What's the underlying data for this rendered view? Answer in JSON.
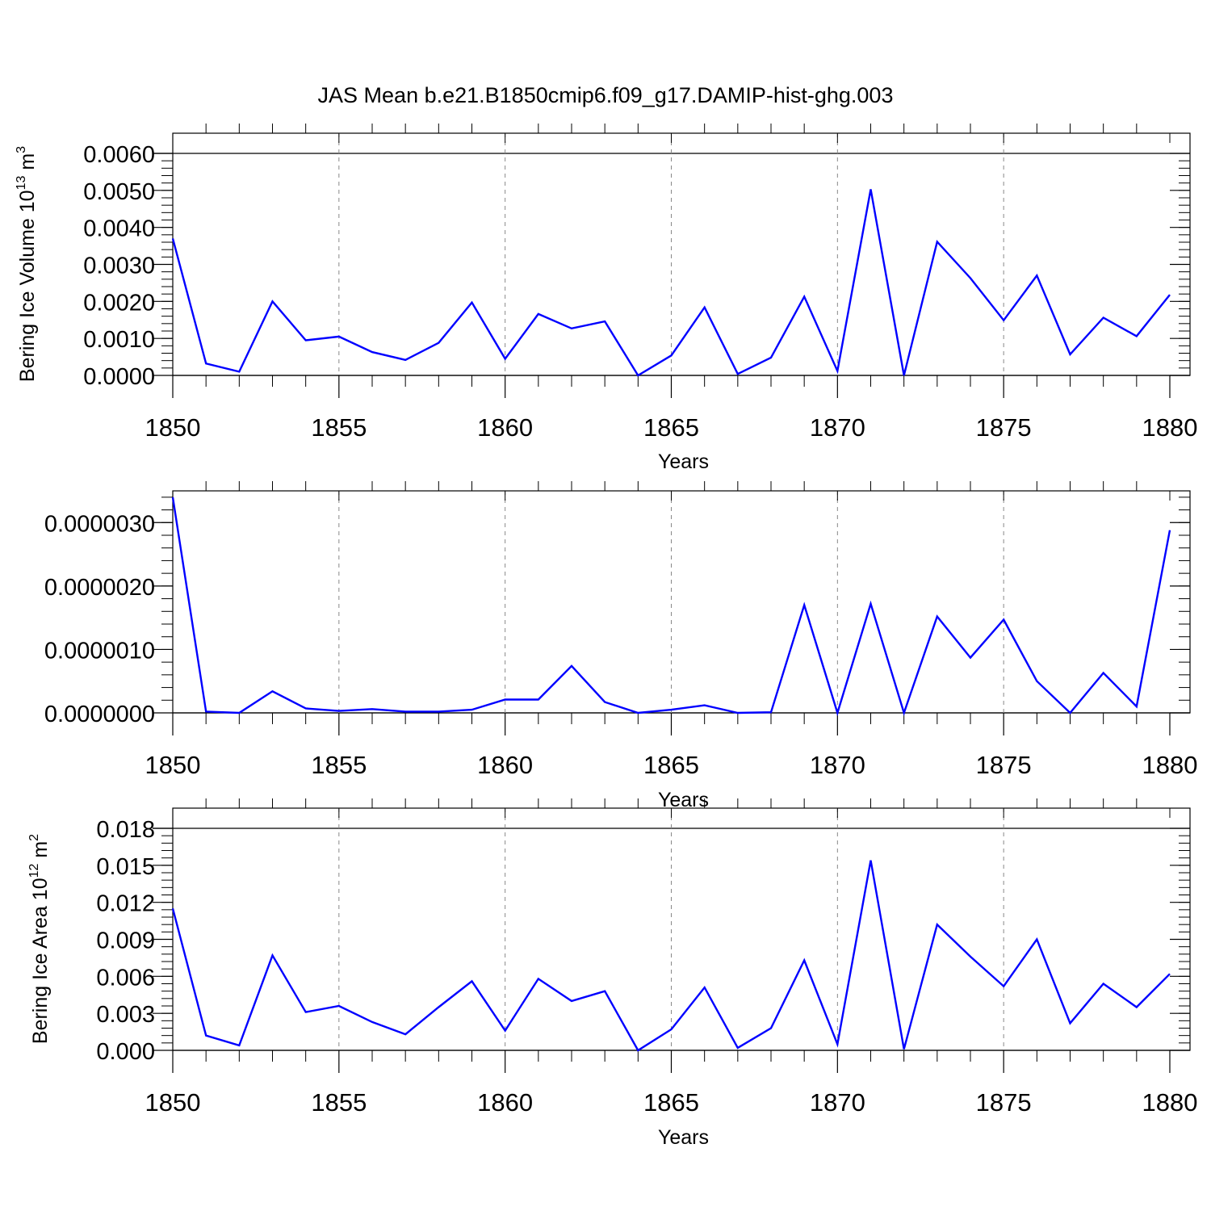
{
  "title": "JAS Mean b.e21.B1850cmip6.f09_g17.DAMIP-hist-ghg.003",
  "chart_data": [
    {
      "type": "line",
      "xlabel": "Years",
      "ylabel": "Bering Ice Volume 10",
      "ylabel_exp": "13",
      "ylabel_unit": " m",
      "ylabel_unit_exp": "3",
      "xlim": [
        1850,
        1880
      ],
      "ylim": [
        0,
        0.006
      ],
      "x_ticks": [
        "1850",
        "1855",
        "1860",
        "1865",
        "1870",
        "1875",
        "1880"
      ],
      "y_ticks": [
        "0.0000",
        "0.0010",
        "0.0020",
        "0.0030",
        "0.0040",
        "0.0050",
        "0.0060"
      ],
      "x": [
        1850,
        1851,
        1852,
        1853,
        1854,
        1855,
        1856,
        1857,
        1858,
        1859,
        1860,
        1861,
        1862,
        1863,
        1864,
        1865,
        1866,
        1867,
        1868,
        1869,
        1870,
        1871,
        1872,
        1873,
        1874,
        1875,
        1876,
        1877,
        1878,
        1879,
        1880
      ],
      "series": [
        {
          "color": "#0000ff",
          "values": [
            0.0037,
            0.00032,
            0.0001,
            0.002,
            0.00095,
            0.00105,
            0.00063,
            0.00042,
            0.00088,
            0.00197,
            0.00045,
            0.00166,
            0.00127,
            0.00146,
            0.0,
            0.00054,
            0.00184,
            4e-05,
            0.00048,
            0.00213,
            0.00012,
            0.00503,
            0.0,
            0.00361,
            0.00263,
            0.00149,
            0.0027,
            0.00057,
            0.00156,
            0.00106,
            0.00218
          ]
        }
      ],
      "grid": "vertical dashed at major x ticks"
    },
    {
      "type": "line",
      "xlabel": "Years",
      "ylabel": "",
      "xlim": [
        1850,
        1880
      ],
      "ylim": [
        0,
        3.5e-06
      ],
      "x_ticks": [
        "1850",
        "1855",
        "1860",
        "1865",
        "1870",
        "1875",
        "1880"
      ],
      "y_ticks": [
        "0.0000000",
        "0.0000010",
        "0.0000020",
        "0.0000030"
      ],
      "x": [
        1850,
        1851,
        1852,
        1853,
        1854,
        1855,
        1856,
        1857,
        1858,
        1859,
        1860,
        1861,
        1862,
        1863,
        1864,
        1865,
        1866,
        1867,
        1868,
        1869,
        1870,
        1871,
        1872,
        1873,
        1874,
        1875,
        1876,
        1877,
        1878,
        1879,
        1880
      ],
      "series": [
        {
          "color": "#0000ff",
          "values": [
            3.4e-06,
            2e-08,
            0.0,
            3.4e-07,
            7e-08,
            3e-08,
            6e-08,
            2e-08,
            2e-08,
            5e-08,
            2.1e-07,
            2.1e-07,
            7.4e-07,
            1.7e-07,
            0.0,
            5e-08,
            1.2e-07,
            0.0,
            1e-08,
            1.7e-06,
            0.0,
            1.72e-06,
            0.0,
            1.52e-06,
            8.7e-07,
            1.47e-06,
            5e-07,
            0.0,
            6.3e-07,
            1e-07,
            2.88e-06
          ]
        }
      ],
      "grid": "vertical dashed at major x ticks"
    },
    {
      "type": "line",
      "xlabel": "Years",
      "ylabel": "Bering Ice Area 10",
      "ylabel_exp": "12",
      "ylabel_unit": " m",
      "ylabel_unit_exp": "2",
      "xlim": [
        1850,
        1880
      ],
      "ylim": [
        0,
        0.018
      ],
      "x_ticks": [
        "1850",
        "1855",
        "1860",
        "1865",
        "1870",
        "1875",
        "1880"
      ],
      "y_ticks": [
        "0.000",
        "0.003",
        "0.006",
        "0.009",
        "0.012",
        "0.015",
        "0.018"
      ],
      "x": [
        1850,
        1851,
        1852,
        1853,
        1854,
        1855,
        1856,
        1857,
        1858,
        1859,
        1860,
        1861,
        1862,
        1863,
        1864,
        1865,
        1866,
        1867,
        1868,
        1869,
        1870,
        1871,
        1872,
        1873,
        1874,
        1875,
        1876,
        1877,
        1878,
        1879,
        1880
      ],
      "series": [
        {
          "color": "#0000ff",
          "values": [
            0.0115,
            0.0012,
            0.0004,
            0.0077,
            0.0031,
            0.0036,
            0.0023,
            0.0013,
            0.0035,
            0.0056,
            0.0016,
            0.0058,
            0.004,
            0.0048,
            0.0,
            0.0017,
            0.0051,
            0.0002,
            0.0018,
            0.0073,
            0.0005,
            0.0154,
            0.0001,
            0.0102,
            0.0076,
            0.0052,
            0.009,
            0.0022,
            0.0054,
            0.0035,
            0.0062
          ]
        }
      ],
      "grid": "vertical dashed at major x ticks"
    }
  ]
}
